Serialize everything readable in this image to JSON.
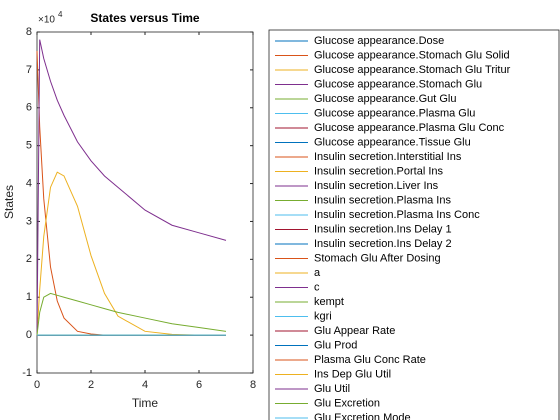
{
  "chart_data": {
    "type": "line",
    "title": "States versus Time",
    "xlabel": "Time",
    "ylabel": "States",
    "y_multiplier": {
      "base": "×10",
      "exponent": "4"
    },
    "x": [
      0,
      0.1,
      0.25,
      0.5,
      0.75,
      1,
      1.5,
      2,
      2.5,
      3,
      4,
      5,
      6,
      7
    ],
    "xlim": [
      0,
      8
    ],
    "xticks": [
      0,
      2,
      4,
      6,
      8
    ],
    "ylim": [
      -1,
      8
    ],
    "yticks": [
      -1,
      0,
      1,
      2,
      3,
      4,
      5,
      6,
      7,
      8
    ],
    "grid": false,
    "legend_location": "eastoutside",
    "series": [
      {
        "name": "Glucose appearance.Dose",
        "color": "#0072BD",
        "values": [
          0,
          0,
          0,
          0,
          0,
          0,
          0,
          0,
          0,
          0,
          0,
          0,
          0,
          0
        ]
      },
      {
        "name": "Glucose appearance.Stomach Glu Solid",
        "color": "#D95319",
        "values": [
          7.5,
          5.5,
          3.6,
          1.8,
          0.9,
          0.45,
          0.1,
          0.03,
          0,
          0,
          0,
          0,
          0,
          0
        ]
      },
      {
        "name": "Glucose appearance.Stomach Glu Tritur",
        "color": "#EDB120",
        "values": [
          0,
          1.2,
          2.6,
          3.9,
          4.3,
          4.2,
          3.4,
          2.1,
          1.1,
          0.5,
          0.1,
          0.02,
          0,
          0
        ]
      },
      {
        "name": "Glucose appearance.Stomach Glu",
        "color": "#7E2F8E",
        "values": [
          0,
          7.8,
          7.3,
          6.7,
          6.2,
          5.8,
          5.1,
          4.6,
          4.2,
          3.9,
          3.3,
          2.9,
          2.7,
          2.5
        ]
      },
      {
        "name": "Glucose appearance.Gut Glu",
        "color": "#77AC30",
        "values": [
          0,
          0.6,
          1.0,
          1.1,
          1.05,
          1.0,
          0.9,
          0.8,
          0.7,
          0.6,
          0.45,
          0.3,
          0.2,
          0.1
        ]
      },
      {
        "name": "Glucose appearance.Plasma Glu",
        "color": "#4DBEEE",
        "values": [
          0,
          0,
          0,
          0,
          0,
          0,
          0,
          0,
          0,
          0,
          0,
          0,
          0,
          0
        ]
      },
      {
        "name": "Glucose appearance.Plasma Glu Conc",
        "color": "#A2142F",
        "values": [
          0,
          0,
          0,
          0,
          0,
          0,
          0,
          0,
          0,
          0,
          0,
          0,
          0,
          0
        ]
      },
      {
        "name": "Glucose appearance.Tissue Glu",
        "color": "#0072BD",
        "values": [
          0,
          0,
          0,
          0,
          0,
          0,
          0,
          0,
          0,
          0,
          0,
          0,
          0,
          0
        ]
      },
      {
        "name": "Insulin secretion.Interstitial Ins",
        "color": "#D95319",
        "values": [
          0,
          0,
          0,
          0,
          0,
          0,
          0,
          0,
          0,
          0,
          0,
          0,
          0,
          0
        ]
      },
      {
        "name": "Insulin secretion.Portal Ins",
        "color": "#EDB120",
        "values": [
          0,
          0,
          0,
          0,
          0,
          0,
          0,
          0,
          0,
          0,
          0,
          0,
          0,
          0
        ]
      },
      {
        "name": "Insulin secretion.Liver Ins",
        "color": "#7E2F8E",
        "values": [
          0,
          0,
          0,
          0,
          0,
          0,
          0,
          0,
          0,
          0,
          0,
          0,
          0,
          0
        ]
      },
      {
        "name": "Insulin secretion.Plasma Ins",
        "color": "#77AC30",
        "values": [
          0,
          0,
          0,
          0,
          0,
          0,
          0,
          0,
          0,
          0,
          0,
          0,
          0,
          0
        ]
      },
      {
        "name": "Insulin secretion.Plasma Ins Conc",
        "color": "#4DBEEE",
        "values": [
          0,
          0,
          0,
          0,
          0,
          0,
          0,
          0,
          0,
          0,
          0,
          0,
          0,
          0
        ]
      },
      {
        "name": "Insulin secretion.Ins Delay 1",
        "color": "#A2142F",
        "values": [
          0,
          0,
          0,
          0,
          0,
          0,
          0,
          0,
          0,
          0,
          0,
          0,
          0,
          0
        ]
      },
      {
        "name": "Insulin secretion.Ins Delay 2",
        "color": "#0072BD",
        "values": [
          0,
          0,
          0,
          0,
          0,
          0,
          0,
          0,
          0,
          0,
          0,
          0,
          0,
          0
        ]
      },
      {
        "name": "Stomach Glu After Dosing",
        "color": "#D95319",
        "values": [
          0,
          0,
          0,
          0,
          0,
          0,
          0,
          0,
          0,
          0,
          0,
          0,
          0,
          0
        ]
      },
      {
        "name": "a",
        "color": "#EDB120",
        "values": [
          0,
          0,
          0,
          0,
          0,
          0,
          0,
          0,
          0,
          0,
          0,
          0,
          0,
          0
        ]
      },
      {
        "name": "c",
        "color": "#7E2F8E",
        "values": [
          0,
          0,
          0,
          0,
          0,
          0,
          0,
          0,
          0,
          0,
          0,
          0,
          0,
          0
        ]
      },
      {
        "name": "kempt",
        "color": "#77AC30",
        "values": [
          0,
          0,
          0,
          0,
          0,
          0,
          0,
          0,
          0,
          0,
          0,
          0,
          0,
          0
        ]
      },
      {
        "name": "kgri",
        "color": "#4DBEEE",
        "values": [
          0,
          0,
          0,
          0,
          0,
          0,
          0,
          0,
          0,
          0,
          0,
          0,
          0,
          0
        ]
      },
      {
        "name": "Glu Appear Rate",
        "color": "#A2142F",
        "values": [
          0,
          0,
          0,
          0,
          0,
          0,
          0,
          0,
          0,
          0,
          0,
          0,
          0,
          0
        ]
      },
      {
        "name": "Glu Prod",
        "color": "#0072BD",
        "values": [
          0,
          0,
          0,
          0,
          0,
          0,
          0,
          0,
          0,
          0,
          0,
          0,
          0,
          0
        ]
      },
      {
        "name": "Plasma Glu Conc Rate",
        "color": "#D95319",
        "values": [
          0,
          0,
          0,
          0,
          0,
          0,
          0,
          0,
          0,
          0,
          0,
          0,
          0,
          0
        ]
      },
      {
        "name": "Ins Dep Glu Util",
        "color": "#EDB120",
        "values": [
          0,
          0,
          0,
          0,
          0,
          0,
          0,
          0,
          0,
          0,
          0,
          0,
          0,
          0
        ]
      },
      {
        "name": "Glu Util",
        "color": "#7E2F8E",
        "values": [
          0,
          0,
          0,
          0,
          0,
          0,
          0,
          0,
          0,
          0,
          0,
          0,
          0,
          0
        ]
      },
      {
        "name": "Glu Excretion",
        "color": "#77AC30",
        "values": [
          0,
          0,
          0,
          0,
          0,
          0,
          0,
          0,
          0,
          0,
          0,
          0,
          0,
          0
        ]
      },
      {
        "name": "Glu Excretion Mode",
        "color": "#4DBEEE",
        "values": [
          0,
          0,
          0,
          0,
          0,
          0,
          0,
          0,
          0,
          0,
          0,
          0,
          0,
          0
        ]
      }
    ]
  }
}
